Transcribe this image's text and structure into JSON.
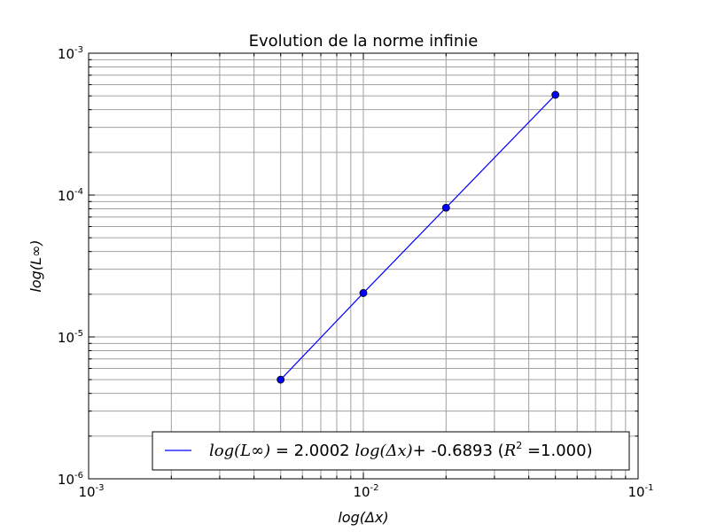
{
  "chart_data": {
    "type": "line",
    "title": "Evolution de la norme infinie",
    "xlabel": "log(Δx)",
    "ylabel": "log(L∞)",
    "xscale": "log",
    "yscale": "log",
    "xlim": [
      0.001,
      0.1
    ],
    "ylim": [
      1e-06,
      0.001
    ],
    "x_ticks": [
      {
        "value": 0.001,
        "base": "10",
        "exp": "-3"
      },
      {
        "value": 0.01,
        "base": "10",
        "exp": "-2"
      },
      {
        "value": 0.1,
        "base": "10",
        "exp": "-1"
      }
    ],
    "y_ticks": [
      {
        "value": 1e-06,
        "base": "10",
        "exp": "-6"
      },
      {
        "value": 1e-05,
        "base": "10",
        "exp": "-5"
      },
      {
        "value": 0.0001,
        "base": "10",
        "exp": "-4"
      },
      {
        "value": 0.001,
        "base": "10",
        "exp": "-3"
      }
    ],
    "grid": true,
    "legend_position": "lower-right",
    "series": [
      {
        "name": "log(L∞) = 2.0002 log(Δx)+ -0.6893 (R² =1.000)",
        "color": "#0000ff",
        "marker": "circle",
        "x": [
          0.005,
          0.01,
          0.02,
          0.05
        ],
        "y": [
          5e-06,
          2.04e-05,
          8.15e-05,
          0.000509
        ]
      }
    ],
    "legend": {
      "part1": "log(L∞)",
      "part2": " = 2.0002 ",
      "part3": "log(Δx)",
      "part4": "+ -0.6893 (",
      "part5": "R",
      "part6": "2",
      "part7": " =1.000)"
    }
  }
}
